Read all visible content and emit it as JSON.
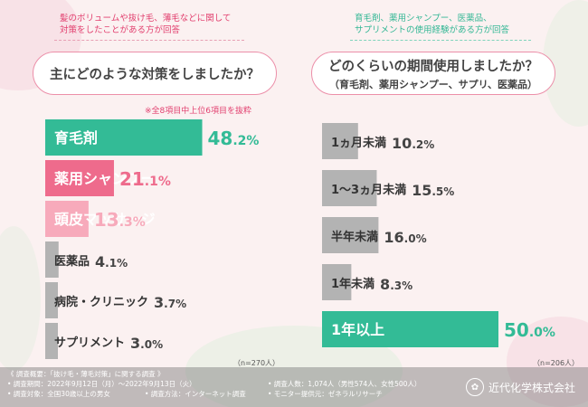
{
  "left_panel": {
    "caption_line1": "髪のボリュームや抜け毛、薄毛などに関して",
    "caption_line2": "対策をしたことがある方が回答",
    "question": "主にどのような対策をしましたか？",
    "note": "※全8項目中上位6項目を抜粋",
    "n_label": "（n=270人）"
  },
  "right_panel": {
    "caption_line1": "育毛剤、薬用シャンプー、医薬品、",
    "caption_line2": "サプリメントの使用経験がある方が回答",
    "question": "どのくらいの期間使用しましたか？",
    "question_sub": "（育毛剤、薬用シャンプー、サプリ、医薬品）",
    "n_label": "（n=206人）"
  },
  "chart_data": [
    {
      "type": "bar",
      "orientation": "horizontal",
      "title": "主にどのような対策をしましたか？",
      "categories": [
        "育毛剤",
        "薬用シャンプー",
        "頭皮マッサージ",
        "医薬品",
        "病院・クリニック",
        "サプリメント"
      ],
      "values": [
        48.2,
        21.1,
        13.3,
        4.1,
        3.7,
        3.0
      ],
      "unit": "%",
      "colors": [
        "#33bb96",
        "#ee6b8c",
        "#f7aabb",
        "#b3b3b3",
        "#b3b3b3",
        "#b3b3b3"
      ]
    },
    {
      "type": "bar",
      "orientation": "horizontal",
      "title": "どのくらいの期間使用しましたか？",
      "categories": [
        "1ヵ月未満",
        "1～3ヵ月未満",
        "半年未満",
        "1年未満",
        "1年以上"
      ],
      "values": [
        10.2,
        15.5,
        16.0,
        8.3,
        50.0
      ],
      "unit": "%",
      "colors": [
        "#b3b3b3",
        "#b3b3b3",
        "#b3b3b3",
        "#b3b3b3",
        "#33bb96"
      ]
    }
  ],
  "footer": {
    "line1": "《 調査概要：「抜け毛・薄毛対策」に関する調査 》",
    "period": "• 調査期間：2022年9月12日（月）～2022年9月13日（火）",
    "target": "• 調査対象：全国30歳以上の男女",
    "method": "• 調査方法：インターネット調査",
    "people": "• 調査人数：1,074人（男性574人、女性500人）",
    "provider": "• モニター提供元：ゼネラルリサーチ",
    "brand": "近代化学株式会社"
  }
}
